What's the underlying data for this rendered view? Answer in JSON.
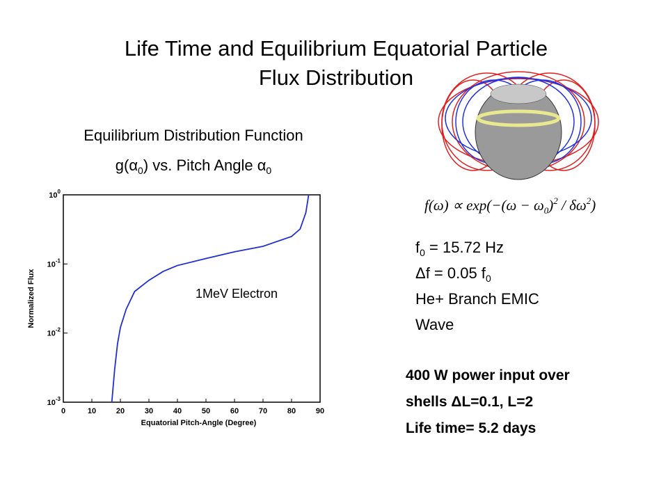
{
  "slide": {
    "title_lines": [
      "Life Time and Equilibrium Equatorial Particle",
      "Flux Distribution"
    ],
    "subtitle_line1": "Equilibrium Distribution Function",
    "subtitle_line2": [
      "g(α",
      "0",
      ") vs. Pitch Angle α",
      "0"
    ],
    "equation": [
      "f(ω) ∝ exp(−(ω − ω",
      "0",
      ")",
      "2",
      " / δω",
      "2",
      ")"
    ],
    "params": {
      "f0": [
        "f",
        "0",
        " = 15.72 Hz"
      ],
      "df": [
        "Δf = 0.05 f",
        "0"
      ],
      "branch": "He+ Branch EMIC",
      "wave": "Wave"
    },
    "notes": [
      "400 W power input over",
      "shells ΔL=0.1, L=2",
      "Life time= 5.2 days"
    ]
  },
  "chart_data": {
    "type": "line",
    "xlabel": "Equatorial Pitch-Angle (Degree)",
    "ylabel": "Normalized Flux",
    "annotation": "1MeV Electron",
    "x": [
      17,
      18,
      19,
      20,
      22,
      25,
      30,
      35,
      40,
      50,
      60,
      70,
      80,
      83,
      85,
      86
    ],
    "values": [
      0.001,
      0.003,
      0.007,
      0.012,
      0.022,
      0.04,
      0.058,
      0.078,
      0.095,
      0.12,
      0.15,
      0.18,
      0.25,
      0.32,
      0.55,
      1
    ],
    "color": "#1f2fd0",
    "xlim": [
      0,
      90
    ],
    "xticks": [
      0,
      10,
      20,
      30,
      40,
      50,
      60,
      70,
      80,
      90
    ],
    "ylim": [
      0.001,
      1
    ],
    "log_y": true,
    "yticks": [
      {
        "value": 0.001,
        "label": "10^-3"
      },
      {
        "value": 0.01,
        "label": "10^-2"
      },
      {
        "value": 0.1,
        "label": "10^-1"
      },
      {
        "value": 1,
        "label": "10^0"
      }
    ]
  }
}
